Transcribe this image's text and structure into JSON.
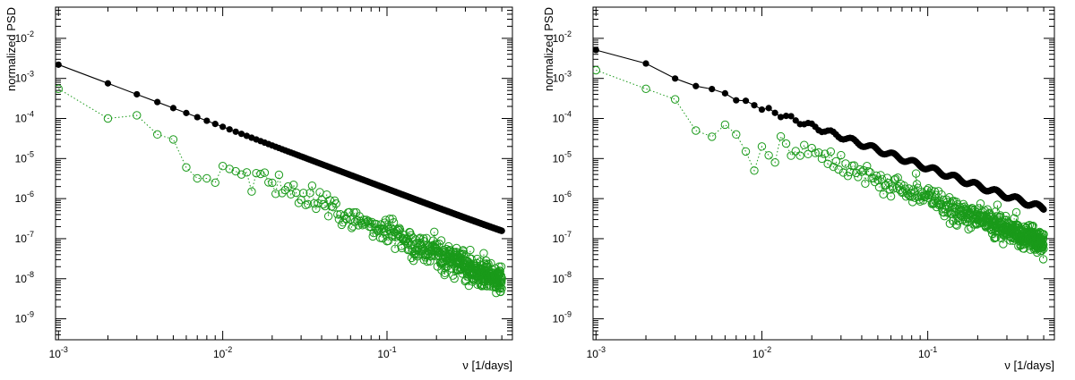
{
  "chart_data": [
    {
      "type": "scatter",
      "title": "",
      "xlabel": "ν [1/days]",
      "ylabel": "normalized PSD",
      "xscale": "log",
      "yscale": "log",
      "xlim": [
        0.00096,
        0.58
      ],
      "ylim": [
        3e-10,
        0.06
      ],
      "x_ticks": [
        {
          "base": "10",
          "exp": "-3",
          "value": 0.001
        },
        {
          "base": "10",
          "exp": "-2",
          "value": 0.01
        },
        {
          "base": "10",
          "exp": "-1",
          "value": 0.1
        }
      ],
      "y_ticks": [
        {
          "base": "10",
          "exp": "-9",
          "value": 1e-09
        },
        {
          "base": "10",
          "exp": "-8",
          "value": 1e-08
        },
        {
          "base": "10",
          "exp": "-7",
          "value": 1e-07
        },
        {
          "base": "10",
          "exp": "-6",
          "value": 1e-06
        },
        {
          "base": "10",
          "exp": "-5",
          "value": 1e-05
        },
        {
          "base": "10",
          "exp": "-4",
          "value": 0.0001
        },
        {
          "base": "10",
          "exp": "-3",
          "value": 0.001
        },
        {
          "base": "10",
          "exp": "-2",
          "value": 0.01
        }
      ],
      "series": [
        {
          "name": "black solid (filled markers)",
          "color": "#000000",
          "marker": "filled-circle",
          "line": "solid",
          "model": "broken-power-law",
          "fmin": 0.001,
          "fmax": 0.5,
          "df": 0.001,
          "anchor_f": 0.001,
          "anchor_y": 0.0022,
          "slope": -1.55,
          "white_noise": 1.25e-08,
          "ripple": 0.0
        },
        {
          "name": "green dotted (open markers)",
          "color": "#1a9a1a",
          "marker": "open-circle",
          "line": "dotted",
          "model": "noisy-power-law",
          "fmin": 0.001,
          "fmax": 0.5,
          "df": 0.001,
          "anchor_f": 0.001,
          "anchor_y": 0.00045,
          "slope": -1.75,
          "white_noise": 0.0,
          "scatter_dex": 0.35,
          "fixed_points": [
            [
              0.001,
              0.00055
            ],
            [
              0.002,
              0.0001
            ],
            [
              0.003,
              0.00012
            ],
            [
              0.004,
              4e-05
            ],
            [
              0.005,
              3e-05
            ],
            [
              0.006,
              6e-06
            ],
            [
              0.007,
              3.2e-06
            ],
            [
              0.008,
              3.2e-06
            ],
            [
              0.009,
              2.5e-06
            ],
            [
              0.01,
              6.5e-06
            ],
            [
              0.011,
              5.5e-06
            ],
            [
              0.012,
              4.8e-06
            ],
            [
              0.013,
              4e-06
            ],
            [
              0.014,
              4.5e-06
            ],
            [
              0.015,
              1.5e-06
            ]
          ]
        }
      ]
    },
    {
      "type": "scatter",
      "title": "",
      "xlabel": "ν [1/days]",
      "ylabel": "normalized PSD",
      "xscale": "log",
      "yscale": "log",
      "xlim": [
        0.00096,
        0.58
      ],
      "ylim": [
        3e-10,
        0.06
      ],
      "x_ticks": [
        {
          "base": "10",
          "exp": "-3",
          "value": 0.001
        },
        {
          "base": "10",
          "exp": "-2",
          "value": 0.01
        },
        {
          "base": "10",
          "exp": "-1",
          "value": 0.1
        }
      ],
      "y_ticks": [
        {
          "base": "10",
          "exp": "-9",
          "value": 1e-09
        },
        {
          "base": "10",
          "exp": "-8",
          "value": 1e-08
        },
        {
          "base": "10",
          "exp": "-7",
          "value": 1e-07
        },
        {
          "base": "10",
          "exp": "-6",
          "value": 1e-06
        },
        {
          "base": "10",
          "exp": "-5",
          "value": 1e-05
        },
        {
          "base": "10",
          "exp": "-4",
          "value": 0.0001
        },
        {
          "base": "10",
          "exp": "-3",
          "value": 0.001
        },
        {
          "base": "10",
          "exp": "-2",
          "value": 0.01
        }
      ],
      "series": [
        {
          "name": "black solid (filled markers)",
          "color": "#000000",
          "marker": "filled-circle",
          "line": "solid",
          "model": "broken-power-law",
          "fmin": 0.001,
          "fmax": 0.5,
          "df": 0.001,
          "anchor_f": 0.001,
          "anchor_y": 0.0058,
          "slope": -1.5,
          "white_noise": 4.8e-08,
          "ripple": 0.06
        },
        {
          "name": "green dotted (open markers)",
          "color": "#1a9a1a",
          "marker": "open-circle",
          "line": "dotted",
          "model": "noisy-power-law",
          "fmin": 0.001,
          "fmax": 0.5,
          "df": 0.001,
          "anchor_f": 0.001,
          "anchor_y": 0.0016,
          "slope": -1.6,
          "white_noise": 0.0,
          "scatter_dex": 0.3,
          "fixed_points": [
            [
              0.001,
              0.0016
            ],
            [
              0.002,
              0.00055
            ],
            [
              0.003,
              0.0003
            ],
            [
              0.004,
              5e-05
            ],
            [
              0.005,
              3.5e-05
            ],
            [
              0.006,
              7e-05
            ],
            [
              0.007,
              4e-05
            ],
            [
              0.008,
              1.5e-05
            ],
            [
              0.009,
              5e-06
            ],
            [
              0.01,
              2e-05
            ],
            [
              0.011,
              1.2e-05
            ],
            [
              0.012,
              8e-06
            ]
          ]
        }
      ]
    }
  ]
}
